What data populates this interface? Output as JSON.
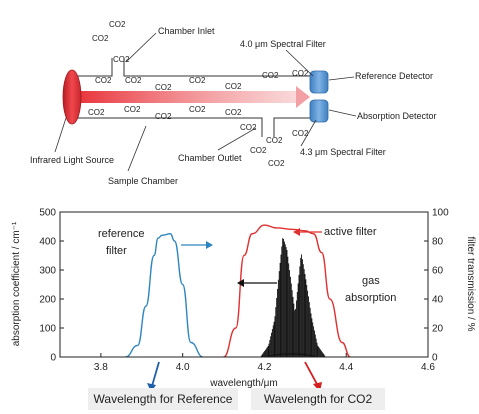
{
  "apparatus": {
    "labels": {
      "chamber_inlet": "Chamber Inlet",
      "filter_40": "4.0 μm Spectral Filter",
      "reference_detector": "Reference Detector",
      "absorption_detector": "Absorption Detector",
      "infrared_source": "Infrared Light Source",
      "chamber_outlet": "Chamber Outlet",
      "filter_43": "4.3 μm Spectral Filter",
      "sample_chamber": "Sample Chamber"
    },
    "molecule_label": "CO2",
    "colors": {
      "source": "#e8333a",
      "detector": "#5b9bd5",
      "chamber_line": "#333333"
    }
  },
  "chart_data": {
    "type": "line",
    "xlabel": "wavelength/μm",
    "ylabel_left": "absorption coefficient / cm⁻¹",
    "ylabel_right": "filter transmission / %",
    "xlim": [
      3.7,
      4.6
    ],
    "ylim_left": [
      0,
      500
    ],
    "ylim_right": [
      0,
      100
    ],
    "x_ticks": [
      "3.8",
      "4.0",
      "4.2",
      "4.4",
      "4.6"
    ],
    "y_left_ticks": [
      "0",
      "100",
      "200",
      "300",
      "400",
      "500"
    ],
    "y_right_ticks": [
      "0",
      "20",
      "40",
      "60",
      "80",
      "100"
    ],
    "annotations": {
      "reference_filter_line1": "reference",
      "reference_filter_line2": "filter",
      "active_filter": "active filter",
      "gas_absorption_line1": "gas",
      "gas_absorption_line2": "absorption"
    },
    "series": [
      {
        "color": "#2e86c1",
        "x": [
          3.86,
          3.89,
          3.91,
          3.93,
          3.94,
          3.95,
          3.97,
          3.98,
          4.0,
          4.02,
          4.05
        ],
        "y_right": [
          0,
          8,
          35,
          70,
          82,
          84,
          85,
          80,
          50,
          10,
          0
        ]
      },
      {
        "color": "#e03030",
        "x": [
          4.1,
          4.13,
          4.15,
          4.17,
          4.2,
          4.23,
          4.27,
          4.3,
          4.32,
          4.34,
          4.36,
          4.39,
          4.41
        ],
        "y_right": [
          0,
          20,
          70,
          85,
          91,
          89,
          88,
          87,
          85,
          72,
          40,
          10,
          0
        ]
      },
      {
        "color": "#111111",
        "envelope_x": [
          4.19,
          4.21,
          4.225,
          4.235,
          4.245,
          4.255,
          4.265,
          4.275,
          4.29,
          4.3,
          4.315,
          4.33,
          4.35
        ],
        "envelope_y": [
          0,
          40,
          130,
          280,
          415,
          370,
          260,
          150,
          360,
          280,
          140,
          40,
          0
        ]
      }
    ]
  },
  "captions": {
    "reference": "Wavelength for Reference",
    "co2": "Wavelength for CO2"
  }
}
